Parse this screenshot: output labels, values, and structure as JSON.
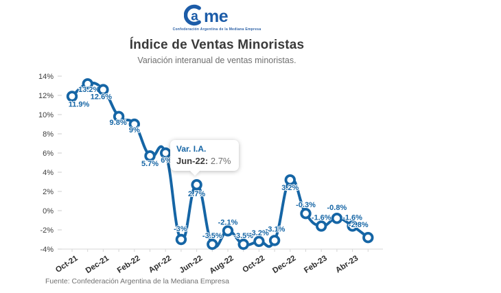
{
  "header": {
    "logo_text": "Came",
    "logo_tagline": "Confederación Argentina de la Mediana Empresa",
    "title": "Índice de Ventas Minoristas",
    "subtitle": "Variación interanual de ventas minoristas."
  },
  "tooltip": {
    "label": "Var. I.A.",
    "period": "Jun-22:",
    "value": "2.7%"
  },
  "footer": {
    "source": "Fuente: Confederación Argentina de la Mediana Empresa"
  },
  "colors": {
    "line": "#1565A5",
    "data_label": "#1565A5",
    "logo": "#1C5CA8",
    "title": "#3A3A3A",
    "subtitle": "#6E6E6E",
    "y_axis_text": "#3D3D3D",
    "x_axis_text": "#2B2B2B",
    "grid": "#D6D6D6",
    "footer_text": "#707070"
  },
  "chart_data": {
    "type": "line",
    "x": [
      "Oct-21",
      "Nov-21",
      "Dec-21",
      "Ene-22",
      "Feb-22",
      "Mar-22",
      "Abr-22",
      "May-22",
      "Jun-22",
      "Jul-22",
      "Ago-22",
      "Sep-22",
      "Oct-22",
      "Nov-22",
      "Dec-22",
      "Ene-23",
      "Feb-23",
      "Mar-23",
      "Abr-23",
      "May-23"
    ],
    "values": [
      11.9,
      13.2,
      12.6,
      9.8,
      9,
      5.7,
      6,
      -3,
      2.7,
      -3.5,
      -2.1,
      -3.5,
      -3.2,
      -3.1,
      3.2,
      -0.3,
      -1.6,
      -0.8,
      -1.6,
      -2.8
    ],
    "point_labels": [
      "11.9%",
      "13.2%",
      "12.6%",
      "9.8%",
      "9%",
      "5.7%",
      "6%",
      "-3%",
      "2.7%",
      "-3.5%",
      "-2.1%",
      "-3.5%",
      "-3.2%",
      "-3.1%",
      "3.2%",
      "-0.3%",
      "-1.6%",
      "-0.8%",
      "-1.6%",
      "-2.8%"
    ],
    "x_tick_labels": [
      "Oct-21",
      "Dec-21",
      "Feb-22",
      "Apr-22",
      "Jun-22",
      "Aug-22",
      "Oct-22",
      "Dec-22",
      "Feb-23",
      "Abr-23"
    ],
    "y_ticks": [
      14,
      12,
      10,
      8,
      6,
      4,
      2,
      0,
      -2,
      -4
    ],
    "y_tick_suffix": "%",
    "ylim": [
      -4,
      14
    ],
    "grid": false,
    "legend": false,
    "highlighted_point": {
      "x": "Jun-22",
      "value": 2.7
    },
    "label_offsets": {
      "0": [
        10,
        -2
      ],
      "1": [
        2,
        -5
      ],
      "2": [
        -3,
        -3
      ],
      "3": [
        -1,
        -5
      ],
      "4": [
        0,
        -5
      ],
      "5": [
        0,
        -2
      ],
      "6": [
        1,
        -3
      ],
      "7": [
        -1,
        -3
      ],
      "13": [
        1,
        -4
      ],
      "14": [
        0,
        -2
      ],
      "17": [
        0,
        -3
      ],
      "19": [
        -14,
        -6
      ]
    }
  }
}
